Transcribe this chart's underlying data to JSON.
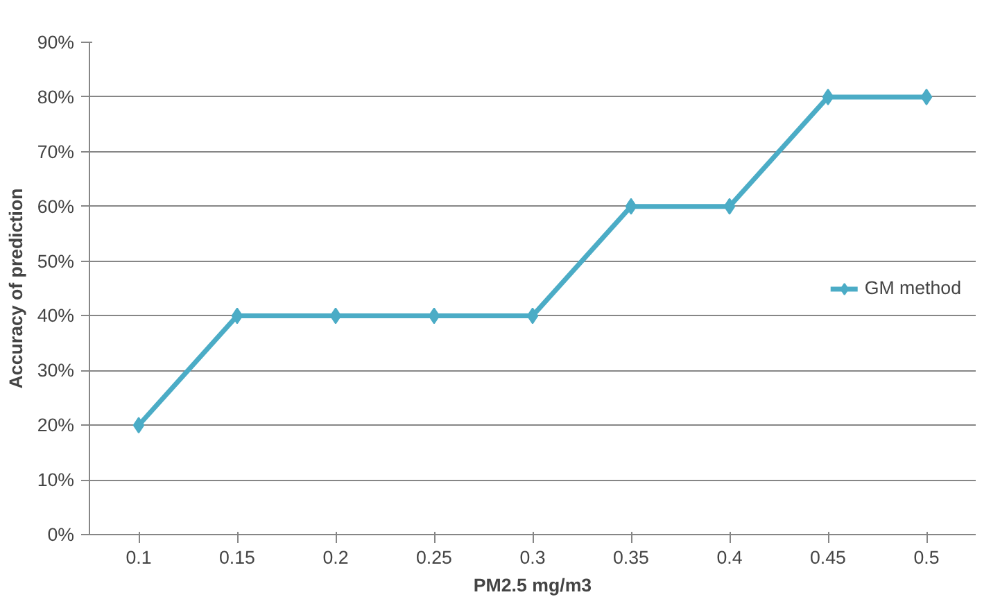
{
  "chart_data": {
    "type": "line",
    "xlabel": "PM2.5 mg/m3",
    "ylabel": "Accuracy of prediction",
    "categories": [
      "0.1",
      "0.15",
      "0.2",
      "0.25",
      "0.3",
      "0.35",
      "0.4",
      "0.45",
      "0.5"
    ],
    "series": [
      {
        "name": "GM method",
        "color": "#4bacc6",
        "values": [
          20,
          40,
          40,
          40,
          40,
          60,
          60,
          80,
          80
        ]
      }
    ],
    "ylim": [
      0,
      90
    ],
    "yticks": [
      {
        "value": 0,
        "label": "0%"
      },
      {
        "value": 10,
        "label": "10%"
      },
      {
        "value": 20,
        "label": "20%"
      },
      {
        "value": 30,
        "label": "30%"
      },
      {
        "value": 40,
        "label": "40%"
      },
      {
        "value": 50,
        "label": "50%"
      },
      {
        "value": 60,
        "label": "60%"
      },
      {
        "value": 70,
        "label": "70%"
      },
      {
        "value": 80,
        "label": "80%"
      },
      {
        "value": 90,
        "label": "90%"
      }
    ],
    "grid": "y",
    "legend": "right",
    "marker": "diamond",
    "line_style": "solid"
  }
}
